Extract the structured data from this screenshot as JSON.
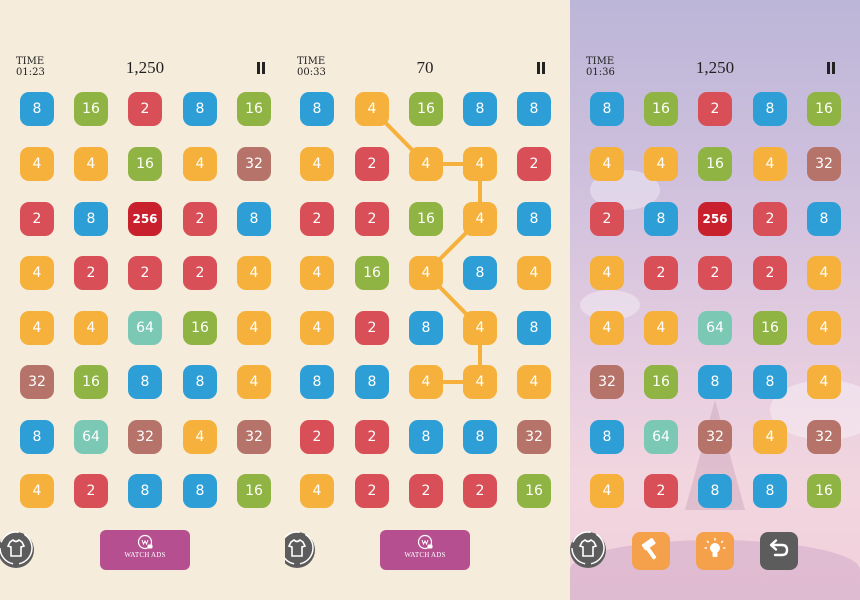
{
  "panels": [
    {
      "time_label": "TIME",
      "time_value": "01:23",
      "score": "1,250",
      "bottom_button_label": "WATCH ADS",
      "grid": [
        [
          "8",
          "16",
          "2",
          "8",
          "16"
        ],
        [
          "4",
          "4",
          "16",
          "4",
          "32"
        ],
        [
          "2",
          "8",
          "256",
          "2",
          "8"
        ],
        [
          "4",
          "2",
          "2",
          "2",
          "4"
        ],
        [
          "4",
          "4",
          "64",
          "16",
          "4"
        ],
        [
          "32",
          "16",
          "8",
          "8",
          "4"
        ],
        [
          "8",
          "64",
          "32",
          "4",
          "32"
        ],
        [
          "4",
          "2",
          "8",
          "8",
          "16"
        ]
      ]
    },
    {
      "time_label": "TIME",
      "time_value": "00:33",
      "score": "70",
      "bottom_button_label": "WATCH ADS",
      "grid": [
        [
          "8",
          "4",
          "16",
          "8",
          "8"
        ],
        [
          "4",
          "2",
          "4",
          "4",
          "2"
        ],
        [
          "2",
          "2",
          "16",
          "4",
          "8"
        ],
        [
          "4",
          "16",
          "4",
          "8",
          "4"
        ],
        [
          "4",
          "2",
          "8",
          "4",
          "8"
        ],
        [
          "8",
          "8",
          "4",
          "4",
          "4"
        ],
        [
          "2",
          "2",
          "8",
          "8",
          "32"
        ],
        [
          "4",
          "2",
          "2",
          "2",
          "16"
        ]
      ],
      "chain": [
        [
          0,
          1
        ],
        [
          1,
          2
        ],
        [
          1,
          3
        ],
        [
          2,
          3
        ],
        [
          3,
          2
        ],
        [
          4,
          3
        ],
        [
          5,
          3
        ],
        [
          5,
          2
        ]
      ]
    },
    {
      "time_label": "TIME",
      "time_value": "01:36",
      "score": "1,250",
      "grid": [
        [
          "8",
          "16",
          "2",
          "8",
          "16"
        ],
        [
          "4",
          "4",
          "16",
          "4",
          "32"
        ],
        [
          "2",
          "8",
          "256",
          "2",
          "8"
        ],
        [
          "4",
          "2",
          "2",
          "2",
          "4"
        ],
        [
          "4",
          "4",
          "64",
          "16",
          "4"
        ],
        [
          "32",
          "16",
          "8",
          "8",
          "4"
        ],
        [
          "8",
          "64",
          "32",
          "4",
          "32"
        ],
        [
          "4",
          "2",
          "8",
          "8",
          "16"
        ]
      ]
    }
  ],
  "icons": {
    "shirt": "shirt-icon",
    "watch_ads": "video-ad-icon",
    "hammer": "hammer-icon",
    "hint": "lightbulb-icon",
    "undo": "undo-icon"
  },
  "colors": {
    "2": "#d94f57",
    "4": "#f5b13b",
    "8": "#2e9fd6",
    "16": "#8fb443",
    "32": "#b5736a",
    "64": "#7bc8b5",
    "256": "#c8202c",
    "chain": "#f5b13b",
    "ads_button": "#b54f8f",
    "hammer_button": "#f5a04a",
    "hint_button": "#f5a04a",
    "undo_button": "#5c5c5c"
  }
}
